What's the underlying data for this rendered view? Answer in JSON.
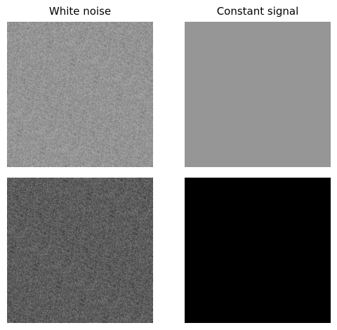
{
  "titles": {
    "left": "White noise",
    "right": "Constant signal"
  },
  "panels": {
    "top_left": {
      "kind": "noise",
      "mean_gray": 148,
      "spread": 14
    },
    "top_right": {
      "kind": "constant",
      "color": "#969696"
    },
    "bottom_left": {
      "kind": "noise",
      "mean_gray": 92,
      "spread": 18
    },
    "bottom_right": {
      "kind": "constant",
      "color": "#000000"
    }
  }
}
